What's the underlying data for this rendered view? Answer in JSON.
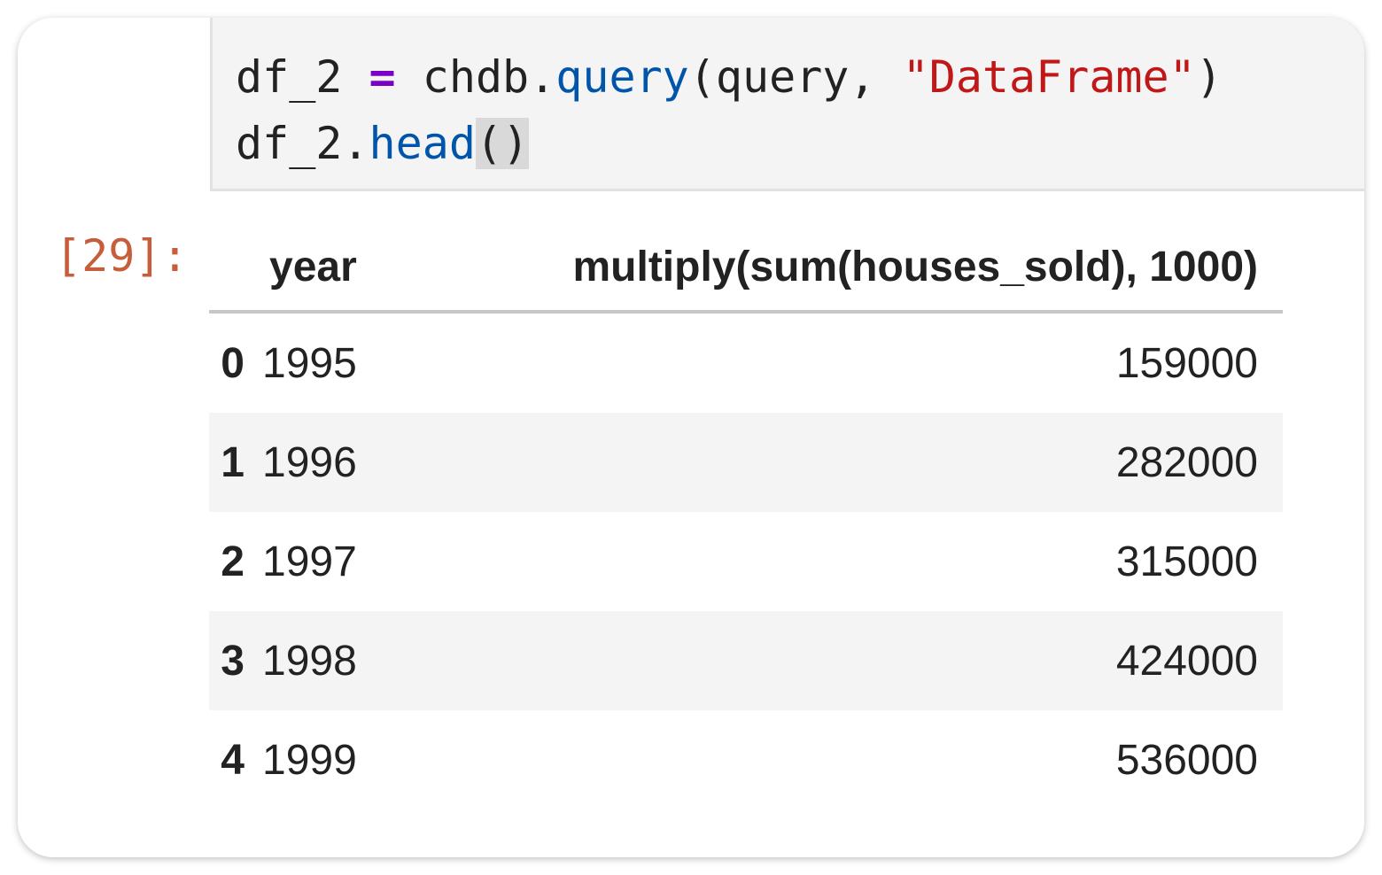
{
  "cell": {
    "code": {
      "line1": {
        "var": "df_2",
        "op": "=",
        "obj": "chdb.",
        "fn": "query",
        "args_open": "(query, ",
        "str": "\"DataFrame\"",
        "close": ")"
      },
      "line2": {
        "var": "df_2.",
        "fn": "head",
        "parens": "()"
      }
    },
    "prompt": "[29]:",
    "output": {
      "columns": [
        "",
        "year",
        "multiply(sum(houses_sold), 1000)"
      ],
      "rows": [
        {
          "index": "0",
          "year": "1995",
          "value": "159000"
        },
        {
          "index": "1",
          "year": "1996",
          "value": "282000"
        },
        {
          "index": "2",
          "year": "1997",
          "value": "315000"
        },
        {
          "index": "3",
          "year": "1998",
          "value": "424000"
        },
        {
          "index": "4",
          "year": "1999",
          "value": "536000"
        }
      ]
    }
  },
  "colors": {
    "prompt": "#c65d3b",
    "keyword_fn": "#0055aa",
    "string": "#c01818",
    "operator": "#7a00c8"
  }
}
